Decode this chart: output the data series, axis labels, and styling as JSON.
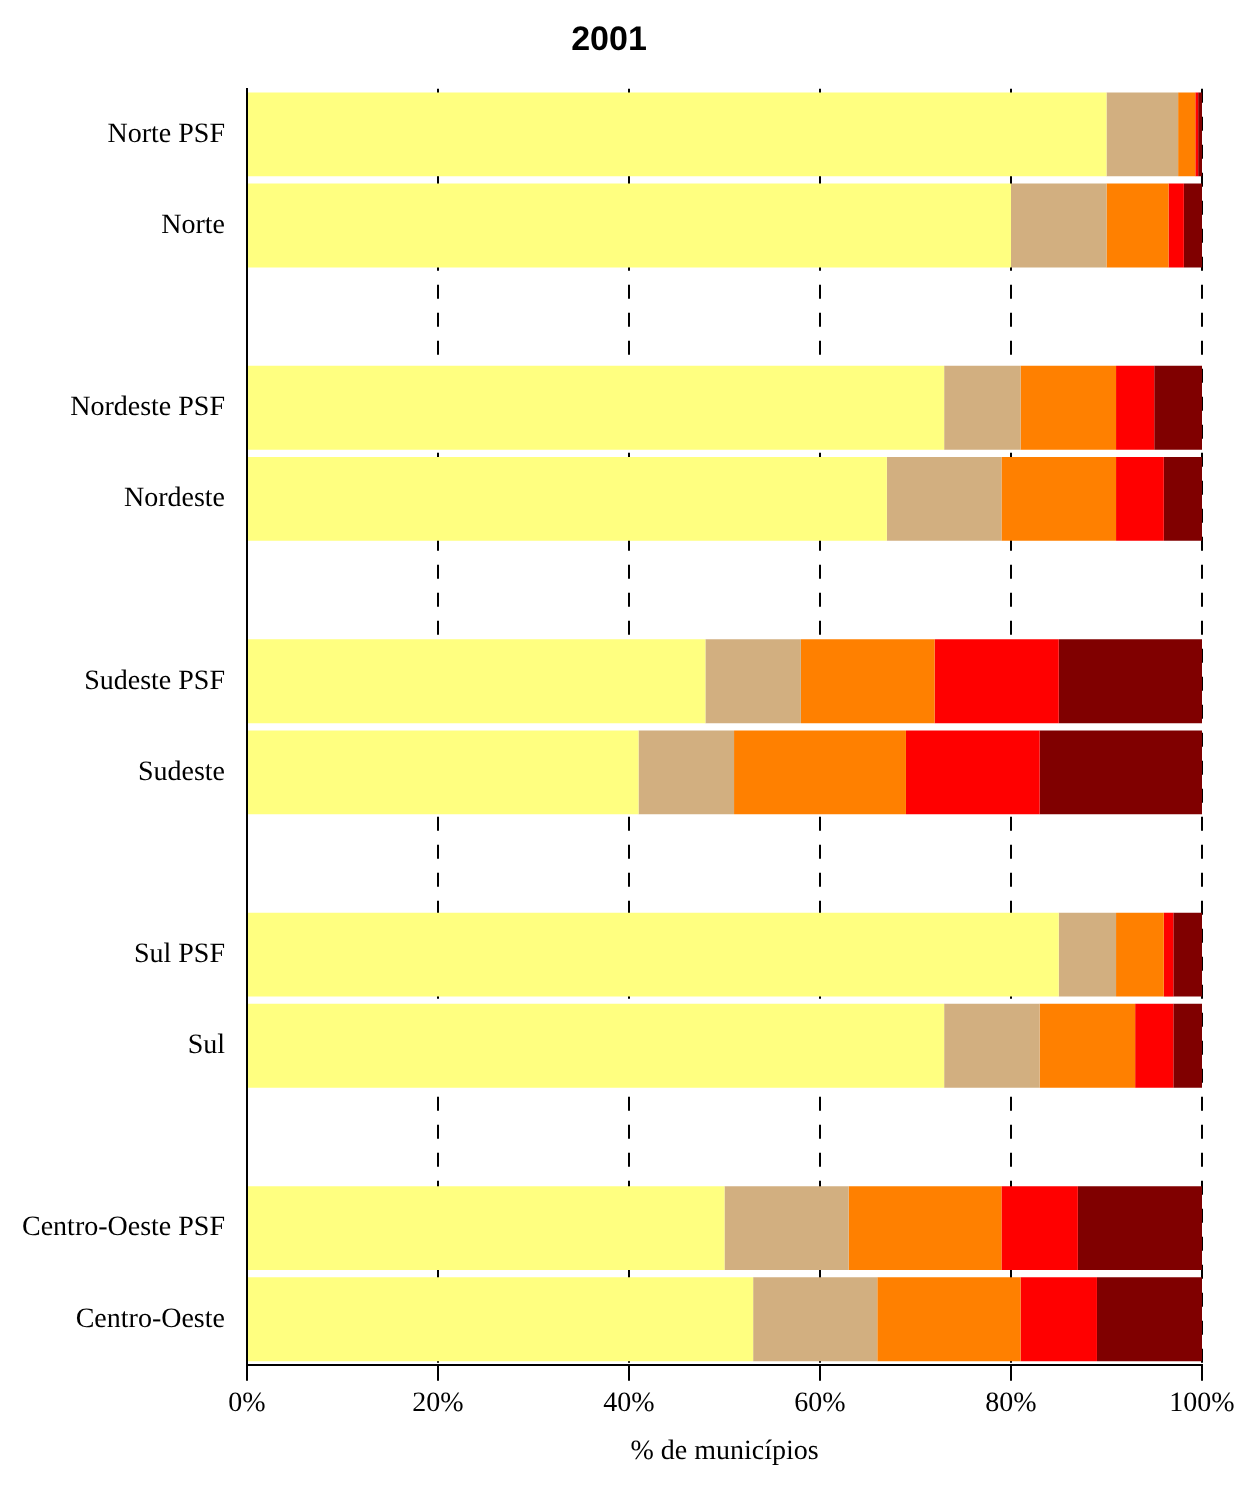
{
  "chart_data": {
    "type": "bar",
    "orientation": "horizontal",
    "stacked": true,
    "title": "2001",
    "xlabel": "% de municípios",
    "categories": [
      "Norte PSF",
      "Norte",
      null,
      "Nordeste PSF",
      "Nordeste",
      null,
      "Sudeste PSF",
      "Sudeste",
      null,
      "Sul PSF",
      "Sul",
      null,
      "Centro-Oeste PSF",
      "Centro-Oeste"
    ],
    "series": [
      {
        "color": "#ffff80",
        "values": [
          90,
          80,
          null,
          73,
          67,
          null,
          48,
          41,
          null,
          85,
          73,
          null,
          50,
          53
        ]
      },
      {
        "color": "#d2af80",
        "values": [
          7.5,
          10,
          null,
          8,
          12,
          null,
          10,
          10,
          null,
          6,
          10,
          null,
          13,
          13
        ]
      },
      {
        "color": "#ff8000",
        "values": [
          1.8,
          6.5,
          null,
          10,
          12,
          null,
          14,
          18,
          null,
          5,
          10,
          null,
          16,
          15
        ]
      },
      {
        "color": "#ff0000",
        "values": [
          0.3,
          1.6,
          null,
          4,
          5,
          null,
          13,
          14,
          null,
          1,
          4,
          null,
          8,
          8
        ]
      },
      {
        "color": "#800000",
        "values": [
          0.4,
          1.9,
          null,
          5,
          4,
          null,
          15,
          17,
          null,
          3,
          3,
          null,
          13,
          11
        ]
      }
    ],
    "xlim": [
      0,
      100
    ],
    "xticks": [
      {
        "value": 0,
        "label": "0%"
      },
      {
        "value": 20,
        "label": "20%"
      },
      {
        "value": 40,
        "label": "40%"
      },
      {
        "value": 60,
        "label": "60%"
      },
      {
        "value": 80,
        "label": "80%"
      },
      {
        "value": 100,
        "label": "100%"
      }
    ],
    "grid": "x",
    "legend": false
  }
}
